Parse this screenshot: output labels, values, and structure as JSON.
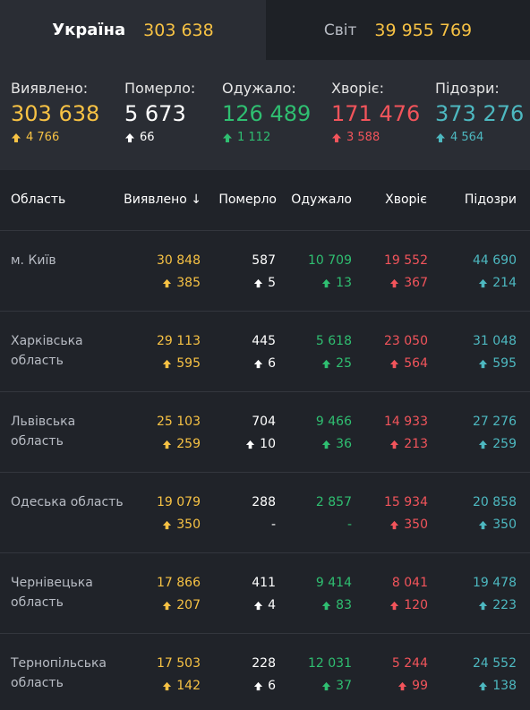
{
  "tabs": [
    {
      "name": "Україна",
      "value": "303 638"
    },
    {
      "name": "Світ",
      "value": "39 955 769"
    }
  ],
  "summary": [
    {
      "label": "Виявлено:",
      "value": "303 638",
      "delta": "4 766",
      "color": "#f7c244"
    },
    {
      "label": "Померло:",
      "value": "5 673",
      "delta": "66",
      "color": "#ffffff"
    },
    {
      "label": "Одужало:",
      "value": "126 489",
      "delta": "1 112",
      "color": "#2fbf71"
    },
    {
      "label": "Хворіє:",
      "value": "171 476",
      "delta": "3 588",
      "color": "#f2545b"
    },
    {
      "label": "Підозри:",
      "value": "373 276",
      "delta": "4 564",
      "color": "#4db8c0"
    }
  ],
  "table": {
    "headers": {
      "region": "Область",
      "detected": "Виявлено",
      "sort_indicator": "↓",
      "died": "Померло",
      "recovered": "Одужало",
      "sick": "Хворіє",
      "suspected": "Підозри"
    },
    "rows": [
      {
        "region": "м. Київ",
        "detected": "30 848",
        "detected_d": "385",
        "died": "587",
        "died_d": "5",
        "recovered": "10 709",
        "recovered_d": "13",
        "sick": "19 552",
        "sick_d": "367",
        "suspected": "44 690",
        "suspected_d": "214"
      },
      {
        "region": "Харківська область",
        "detected": "29 113",
        "detected_d": "595",
        "died": "445",
        "died_d": "6",
        "recovered": "5 618",
        "recovered_d": "25",
        "sick": "23 050",
        "sick_d": "564",
        "suspected": "31 048",
        "suspected_d": "595"
      },
      {
        "region": "Львівська область",
        "detected": "25 103",
        "detected_d": "259",
        "died": "704",
        "died_d": "10",
        "recovered": "9 466",
        "recovered_d": "36",
        "sick": "14 933",
        "sick_d": "213",
        "suspected": "27 276",
        "suspected_d": "259"
      },
      {
        "region": "Одеська область",
        "detected": "19 079",
        "detected_d": "350",
        "died": "288",
        "died_d": "-",
        "recovered": "2 857",
        "recovered_d": "-",
        "sick": "15 934",
        "sick_d": "350",
        "suspected": "20 858",
        "suspected_d": "350"
      },
      {
        "region": "Чернівецька область",
        "detected": "17 866",
        "detected_d": "207",
        "died": "411",
        "died_d": "4",
        "recovered": "9 414",
        "recovered_d": "83",
        "sick": "8 041",
        "sick_d": "120",
        "suspected": "19 478",
        "suspected_d": "223"
      },
      {
        "region": "Тернопільська область",
        "detected": "17 503",
        "detected_d": "142",
        "died": "228",
        "died_d": "6",
        "recovered": "12 031",
        "recovered_d": "37",
        "sick": "5 244",
        "sick_d": "99",
        "suspected": "24 552",
        "suspected_d": "138"
      }
    ]
  }
}
